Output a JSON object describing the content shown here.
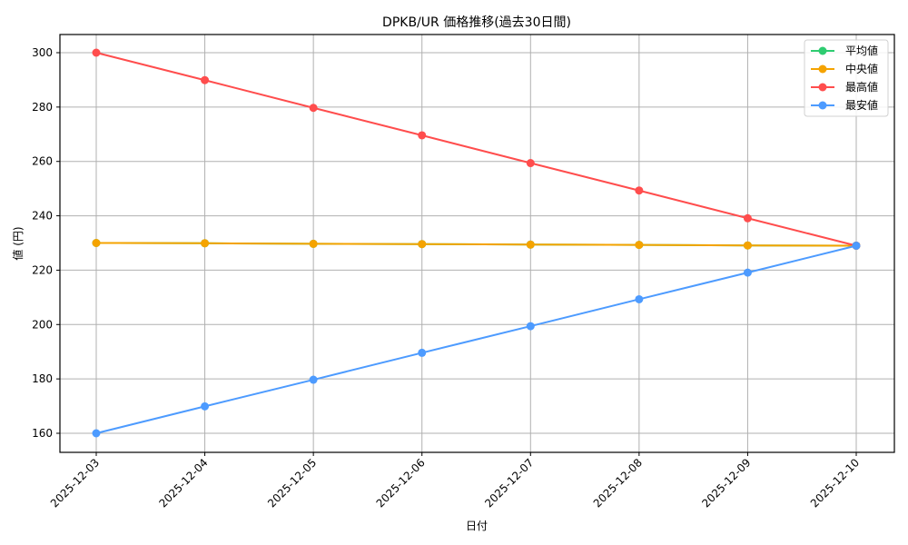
{
  "chart_data": {
    "type": "line",
    "title": "DPKB/UR 価格推移(過去30日間)",
    "xlabel": "日付",
    "ylabel": "値 (円)",
    "categories": [
      "2025-12-03",
      "2025-12-04",
      "2025-12-05",
      "2025-12-06",
      "2025-12-07",
      "2025-12-08",
      "2025-12-09",
      "2025-12-10"
    ],
    "ylim": [
      153,
      307
    ],
    "yticks": [
      160,
      180,
      200,
      220,
      240,
      260,
      280,
      300
    ],
    "grid": true,
    "legend_position": "upper right",
    "series": [
      {
        "name": "平均値",
        "color": "#2ecc71",
        "values": [
          230.0,
          229.9,
          229.7,
          229.6,
          229.4,
          229.3,
          229.1,
          229.0
        ]
      },
      {
        "name": "中央値",
        "color": "#f5a300",
        "values": [
          230.0,
          229.9,
          229.7,
          229.6,
          229.4,
          229.3,
          229.1,
          229.0
        ]
      },
      {
        "name": "最高値",
        "color": "#ff4d4d",
        "values": [
          300.0,
          289.9,
          279.7,
          269.6,
          259.4,
          249.3,
          239.1,
          229.0
        ]
      },
      {
        "name": "最安値",
        "color": "#4d9bff",
        "values": [
          160.0,
          169.9,
          179.7,
          189.6,
          199.4,
          209.3,
          219.1,
          229.0
        ]
      }
    ]
  }
}
